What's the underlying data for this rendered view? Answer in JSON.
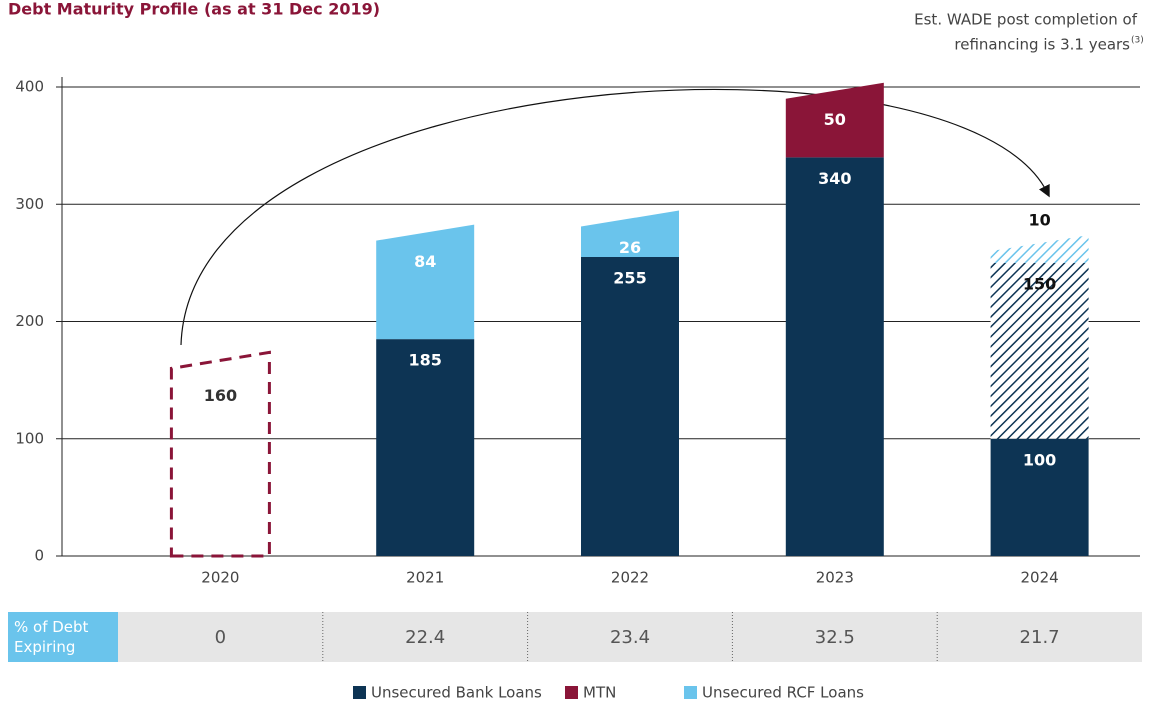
{
  "chart_data": {
    "type": "bar",
    "stacked": true,
    "title": "Debt Maturity Profile (as at 31 Dec 2019)",
    "annotation": [
      "Est. WADE post completion of",
      "refinancing is 3.1 years",
      "(3)"
    ],
    "categories": [
      "2020",
      "2021",
      "2022",
      "2023",
      "2024"
    ],
    "series": [
      {
        "name": "Unsecured Bank Loans",
        "color": "#0d3454",
        "values": [
          null,
          185,
          255,
          340,
          100
        ]
      },
      {
        "name": "MTN",
        "color": "#8a1538",
        "values": [
          null,
          null,
          null,
          50,
          null
        ]
      },
      {
        "name": "Unsecured RCF Loans",
        "color": "#6ac4ec",
        "values": [
          null,
          84,
          26,
          null,
          null
        ]
      }
    ],
    "refinanced_out": {
      "color": "#8a1538",
      "values": [
        160,
        null,
        null,
        null,
        null
      ]
    },
    "refinanced_in": [
      {
        "color": "#0d3454",
        "values": [
          null,
          null,
          null,
          null,
          150
        ]
      },
      {
        "color": "#6ac4ec",
        "values": [
          null,
          null,
          null,
          null,
          10
        ]
      }
    ],
    "ylim": [
      0,
      400
    ],
    "yticks": [
      0,
      100,
      200,
      300,
      400
    ],
    "grid": true,
    "table": {
      "label": "% of Debt Expiring",
      "values": [
        0,
        22.4,
        23.4,
        32.5,
        21.7
      ]
    }
  }
}
